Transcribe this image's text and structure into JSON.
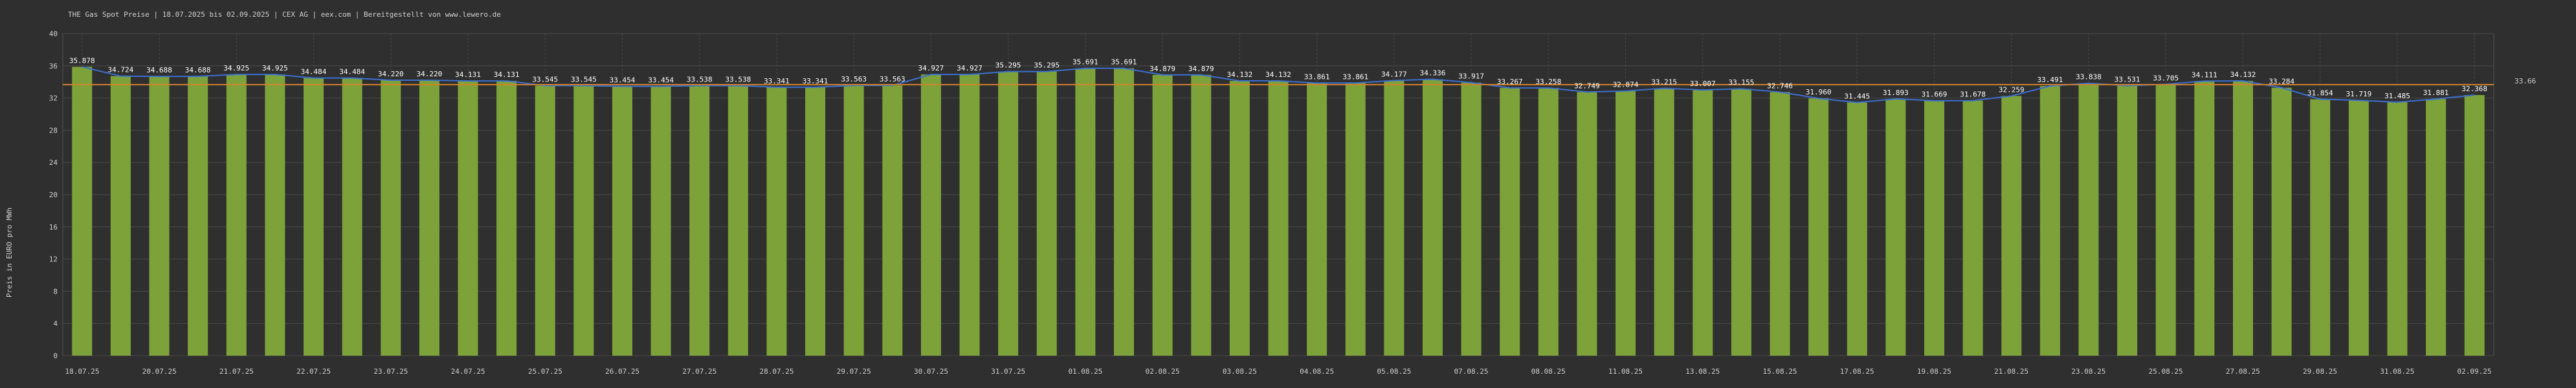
{
  "chart_data": {
    "type": "bar",
    "title": "THE Gas Spot Preise | 18.07.2025 bis 02.09.2025 | CEX AG | eex.com | Bereitgestellt von www.lewero.de",
    "ylabel": "Preis in EURO pro MWh",
    "xlabel": "",
    "ylim": [
      0,
      40
    ],
    "yticks": [
      0,
      4,
      8,
      12,
      16,
      20,
      24,
      28,
      32,
      36,
      40
    ],
    "grid": true,
    "reference_line": {
      "value": 33.66,
      "label": "33.66",
      "color": "#d4822a"
    },
    "colors": {
      "bar": "#7da23a",
      "background": "#2f2f2f",
      "trend_line": "#3b6fd0"
    },
    "x_tick_labels": [
      "18.07.25",
      "20.07.25",
      "21.07.25",
      "22.07.25",
      "23.07.25",
      "24.07.25",
      "25.07.25",
      "26.07.25",
      "27.07.25",
      "28.07.25",
      "29.07.25",
      "30.07.25",
      "31.07.25",
      "01.08.25",
      "02.08.25",
      "03.08.25",
      "04.08.25",
      "05.08.25",
      "07.08.25",
      "08.08.25",
      "11.08.25",
      "13.08.25",
      "15.08.25",
      "17.08.25",
      "19.08.25",
      "21.08.25",
      "23.08.25",
      "25.08.25",
      "27.08.25",
      "29.08.25",
      "31.08.25",
      "02.09.25"
    ],
    "values": [
      35.878,
      34.724,
      34.688,
      34.688,
      34.925,
      34.925,
      34.484,
      34.484,
      34.22,
      34.22,
      34.131,
      34.131,
      33.545,
      33.545,
      33.454,
      33.454,
      33.538,
      33.538,
      33.341,
      33.341,
      33.563,
      33.563,
      34.927,
      34.927,
      35.295,
      35.295,
      35.691,
      35.691,
      34.879,
      34.879,
      34.132,
      34.132,
      33.861,
      33.861,
      34.177,
      34.336,
      33.917,
      33.267,
      33.258,
      32.749,
      32.874,
      33.215,
      33.007,
      33.155,
      32.746,
      31.96,
      31.445,
      31.893,
      31.669,
      31.678,
      32.259,
      33.491,
      33.838,
      33.531,
      33.705,
      34.111,
      34.132,
      33.284,
      31.854,
      31.719,
      31.485,
      31.881,
      32.368
    ]
  }
}
